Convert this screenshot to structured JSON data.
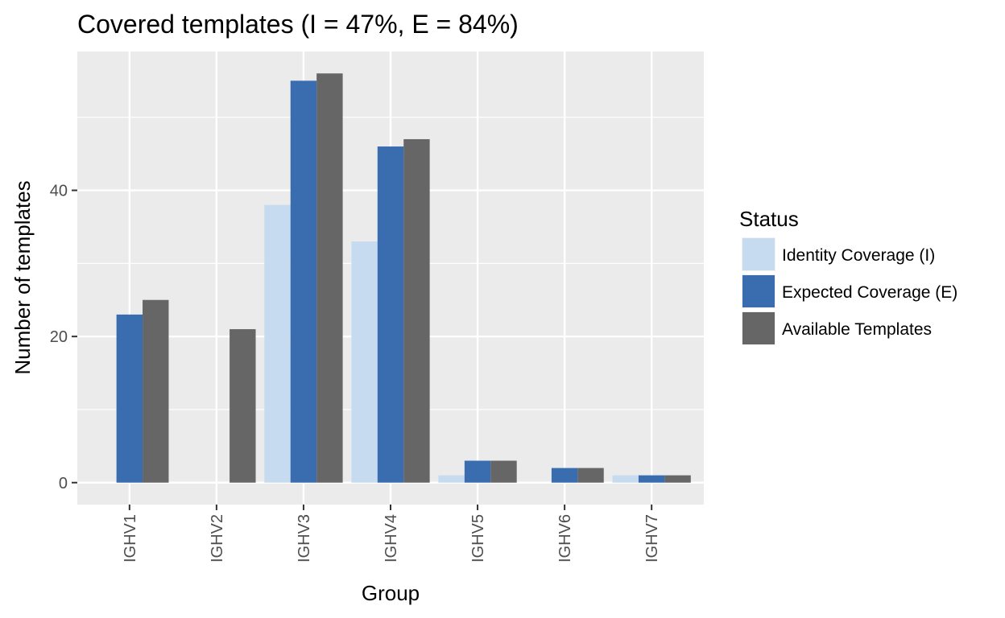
{
  "chart_data": {
    "type": "bar",
    "title": "Covered templates (I = 47%, E = 84%)",
    "xlabel": "Group",
    "ylabel": "Number of templates",
    "categories": [
      "IGHV1",
      "IGHV2",
      "IGHV3",
      "IGHV4",
      "IGHV5",
      "IGHV6",
      "IGHV7"
    ],
    "series": [
      {
        "name": "Identity Coverage (I)",
        "color": "#c6dbef",
        "values": [
          0,
          0,
          38,
          33,
          1,
          0,
          1
        ]
      },
      {
        "name": "Expected Coverage (E)",
        "color": "#3a6db0",
        "values": [
          23,
          0,
          55,
          46,
          3,
          2,
          1
        ]
      },
      {
        "name": "Available Templates",
        "color": "#666666",
        "values": [
          25,
          21,
          56,
          47,
          3,
          2,
          1
        ]
      }
    ],
    "yticks": [
      0,
      20,
      40
    ],
    "ylim": [
      -3,
      59
    ],
    "grid": true,
    "legend": {
      "title": "Status",
      "position": "right"
    },
    "colors": {
      "panel_background": "#ebebeb",
      "grid_line": "#ffffff"
    }
  }
}
